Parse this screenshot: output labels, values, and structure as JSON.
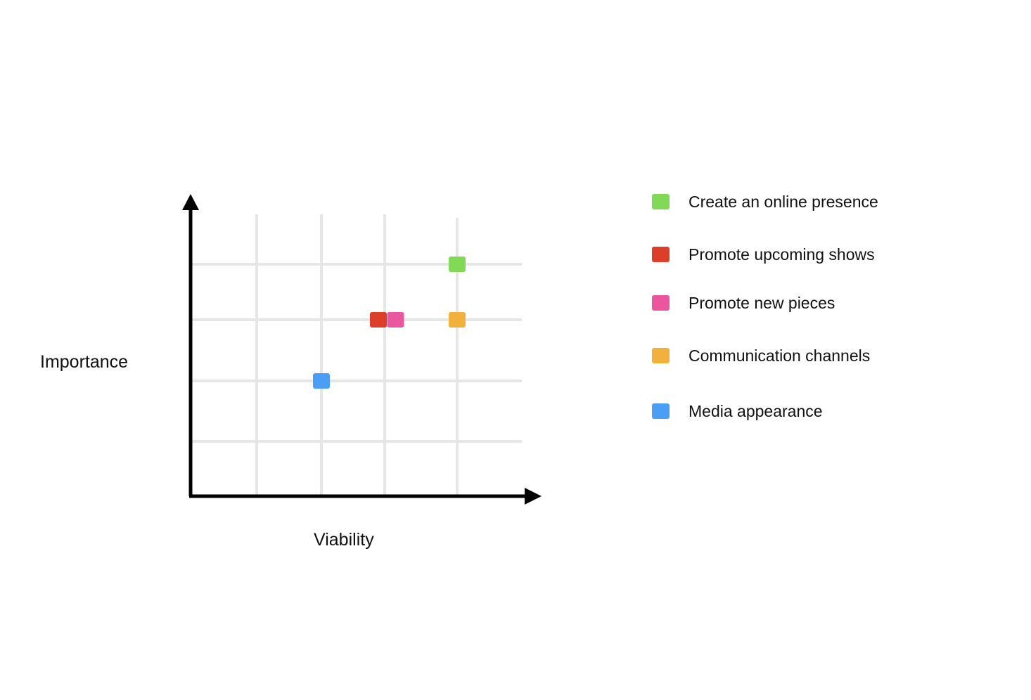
{
  "chart_data": {
    "type": "scatter",
    "title": "",
    "xlabel": "Viability",
    "ylabel": "Importance",
    "grid": true,
    "legend_position": "right",
    "series": [
      {
        "name": "Create an online presence",
        "color": "#82d955",
        "x": 4.0,
        "y": 4.0
      },
      {
        "name": "Promote upcoming shows",
        "color": "#dd3e2a",
        "x": 2.9,
        "y": 3.0
      },
      {
        "name": "Promote new pieces",
        "color": "#ea579f",
        "x": 3.15,
        "y": 3.0
      },
      {
        "name": "Communication channels",
        "color": "#f2b13c",
        "x": 4.0,
        "y": 3.0
      },
      {
        "name": "Media appearance",
        "color": "#4a9ef5",
        "x": 2.0,
        "y": 2.0
      }
    ]
  }
}
